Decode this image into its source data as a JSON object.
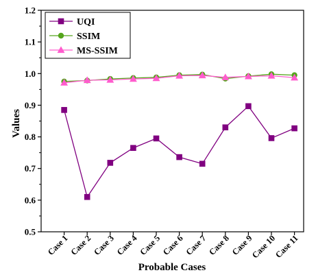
{
  "chart_data": {
    "type": "line",
    "categories": [
      "Case 1",
      "Case 2",
      "Case 3",
      "Case 4",
      "Case 5",
      "Case 6",
      "Case 7",
      "Case 8",
      "Case 9",
      "Case 10",
      "Case 11"
    ],
    "series": [
      {
        "name": "UQI",
        "color": "#800080",
        "marker": "square",
        "values": [
          0.885,
          0.61,
          0.718,
          0.765,
          0.795,
          0.736,
          0.715,
          0.83,
          0.897,
          0.796,
          0.827
        ]
      },
      {
        "name": "SSIM",
        "color": "#55a51c",
        "marker": "circle",
        "values": [
          0.975,
          0.978,
          0.983,
          0.986,
          0.988,
          0.995,
          0.997,
          0.984,
          0.992,
          0.998,
          0.995
        ]
      },
      {
        "name": "MS-SSIM",
        "color": "#ff5ccd",
        "marker": "triangle",
        "values": [
          0.971,
          0.979,
          0.98,
          0.983,
          0.985,
          0.993,
          0.994,
          0.988,
          0.991,
          0.993,
          0.987
        ]
      }
    ],
    "xlabel": "Probable Cases",
    "ylabel": "Values",
    "ylim": [
      0.5,
      1.2
    ],
    "ytick_labels": [
      "0.5",
      "0.6",
      "0.7",
      "0.8",
      "0.9",
      "1.0",
      "1.1",
      "1.2"
    ],
    "grid": false,
    "legend": {
      "position": "top-left"
    }
  }
}
